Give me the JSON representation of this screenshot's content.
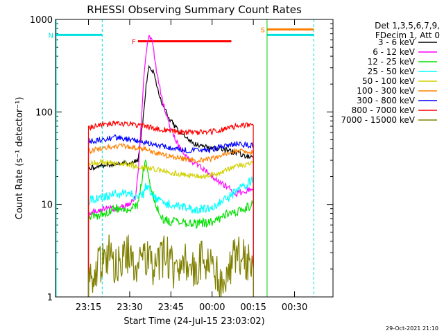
{
  "chart_data": {
    "type": "line",
    "title": "RHESSI Observing Summary Count Rates",
    "xlabel": "Start Time (24-Jul-15 23:03:02)",
    "ylabel": "Count Rate (s⁻¹ detector⁻¹)",
    "y_scale": "log",
    "ylim": [
      1,
      1000
    ],
    "xlim": [
      "23:03",
      "00:44"
    ],
    "x_ticks": [
      "23:15",
      "23:30",
      "23:45",
      "00:00",
      "00:15",
      "00:30"
    ],
    "y_ticks": [
      "1",
      "10",
      "100",
      "1000"
    ],
    "legend_header": [
      "Det 1,3,5,6,7,9,",
      "FDecim 1, Att 0"
    ],
    "footer": "29-Oct-2021 21:10",
    "flags": [
      {
        "label": "N",
        "color": "#00e0e0",
        "start": "23:03",
        "end": "23:20",
        "value": 680
      },
      {
        "label": "F",
        "color": "#ff0000",
        "start": "23:33",
        "end": "00:07",
        "value": 580
      },
      {
        "label": "S",
        "color": "#ff8000",
        "start": "00:20",
        "end": "00:37",
        "value": 780
      },
      {
        "label": "",
        "color": "#00e0e0",
        "start": "00:20",
        "end": "00:37",
        "value": 680
      }
    ],
    "series": [
      {
        "name": "3 - 6 keV",
        "color": "#000000",
        "x": [
          "23:15",
          "23:20",
          "23:25",
          "23:30",
          "23:33",
          "23:35",
          "23:36",
          "23:37",
          "23:39",
          "23:40",
          "23:42",
          "23:45",
          "23:48",
          "23:51",
          "23:54",
          "23:57",
          "00:00",
          "00:03",
          "00:06",
          "00:09",
          "00:12",
          "00:15"
        ],
        "y": [
          25,
          26,
          28,
          28,
          30,
          90,
          200,
          330,
          250,
          180,
          120,
          80,
          60,
          50,
          45,
          42,
          40,
          40,
          38,
          36,
          33,
          32
        ]
      },
      {
        "name": "6 - 12 keV",
        "color": "#ff00ff",
        "x": [
          "23:15",
          "23:20",
          "23:25",
          "23:30",
          "23:32",
          "23:33",
          "23:34",
          "23:35",
          "23:36",
          "23:37",
          "23:38",
          "23:39",
          "23:40",
          "23:42",
          "23:44",
          "23:46",
          "23:48",
          "23:50",
          "23:52",
          "23:54",
          "23:57",
          "00:00",
          "00:03",
          "00:06",
          "00:09",
          "00:12",
          "00:15"
        ],
        "y": [
          8,
          9,
          9,
          10,
          12,
          20,
          60,
          200,
          450,
          680,
          620,
          400,
          250,
          130,
          80,
          55,
          42,
          35,
          30,
          27,
          24,
          20,
          17,
          15,
          13,
          14,
          15
        ]
      },
      {
        "name": "12 - 25 keV",
        "color": "#00e000",
        "x": [
          "23:15",
          "23:20",
          "23:25",
          "23:30",
          "23:33",
          "23:34",
          "23:35",
          "23:36",
          "23:37",
          "23:38",
          "23:40",
          "23:42",
          "23:45",
          "23:48",
          "23:51",
          "23:54",
          "23:57",
          "00:00",
          "00:03",
          "00:06",
          "00:09",
          "00:12",
          "00:15"
        ],
        "y": [
          7,
          8,
          9,
          9,
          10,
          15,
          24,
          30,
          20,
          14,
          9,
          7,
          6.5,
          6.3,
          6.2,
          6.2,
          6.3,
          6.5,
          7,
          8,
          8.5,
          9,
          10
        ]
      },
      {
        "name": "25 - 50 keV",
        "color": "#00ffff",
        "x": [
          "23:15",
          "23:20",
          "23:25",
          "23:30",
          "23:33",
          "23:35",
          "23:36",
          "23:37",
          "23:39",
          "23:42",
          "23:45",
          "23:48",
          "23:51",
          "23:54",
          "23:57",
          "00:00",
          "00:03",
          "00:06",
          "00:09",
          "00:12",
          "00:15"
        ],
        "y": [
          11,
          12,
          13,
          13,
          12,
          13,
          16,
          15,
          12,
          10.5,
          10,
          9.5,
          9,
          8.8,
          9,
          9.5,
          10.5,
          12,
          14,
          16,
          19
        ]
      },
      {
        "name": "50 - 100 keV",
        "color": "#d0d000",
        "x": [
          "23:15",
          "23:20",
          "23:25",
          "23:30",
          "23:35",
          "23:40",
          "23:45",
          "23:50",
          "23:55",
          "00:00",
          "00:03",
          "00:06",
          "00:09",
          "00:12",
          "00:15"
        ],
        "y": [
          28,
          29,
          28,
          27,
          25,
          24,
          22,
          21,
          20,
          21,
          22,
          24,
          26,
          27,
          28
        ]
      },
      {
        "name": "100 - 300 keV",
        "color": "#ff8000",
        "x": [
          "23:15",
          "23:20",
          "23:25",
          "23:30",
          "23:35",
          "23:40",
          "23:45",
          "23:50",
          "23:55",
          "00:00",
          "00:03",
          "00:06",
          "00:09",
          "00:12",
          "00:15"
        ],
        "y": [
          38,
          40,
          43,
          42,
          40,
          36,
          33,
          31,
          30,
          31,
          34,
          36,
          38,
          37,
          36
        ]
      },
      {
        "name": "300 - 800 keV",
        "color": "#0000ff",
        "x": [
          "23:15",
          "23:20",
          "23:25",
          "23:30",
          "23:35",
          "23:40",
          "23:45",
          "23:50",
          "23:55",
          "00:00",
          "00:03",
          "00:06",
          "00:09",
          "00:12",
          "00:15"
        ],
        "y": [
          48,
          50,
          53,
          50,
          47,
          44,
          41,
          39,
          38,
          39,
          42,
          44,
          45,
          44,
          43
        ]
      },
      {
        "name": "800 - 7000 keV",
        "color": "#ff0000",
        "x": [
          "23:15",
          "23:20",
          "23:25",
          "23:30",
          "23:35",
          "23:40",
          "23:45",
          "23:50",
          "23:55",
          "00:00",
          "00:03",
          "00:06",
          "00:09",
          "00:12",
          "00:15"
        ],
        "y": [
          68,
          72,
          76,
          74,
          70,
          66,
          62,
          60,
          60,
          61,
          64,
          68,
          70,
          71,
          72
        ]
      },
      {
        "name": "7000 - 15000 keV",
        "color": "#808000",
        "x": [
          "23:15",
          "23:18",
          "23:20",
          "23:23",
          "23:25",
          "23:28",
          "23:30",
          "23:33",
          "23:36",
          "23:40",
          "23:43",
          "23:46",
          "23:50",
          "23:53",
          "23:56",
          "00:00",
          "00:03",
          "00:06",
          "00:09",
          "00:12",
          "00:15"
        ],
        "y": [
          1.5,
          2,
          2.5,
          3,
          2,
          2.5,
          3,
          2,
          2.5,
          2,
          3,
          2,
          2.5,
          2,
          2.5,
          2,
          1.5,
          2,
          3,
          2.5,
          2
        ]
      }
    ]
  }
}
